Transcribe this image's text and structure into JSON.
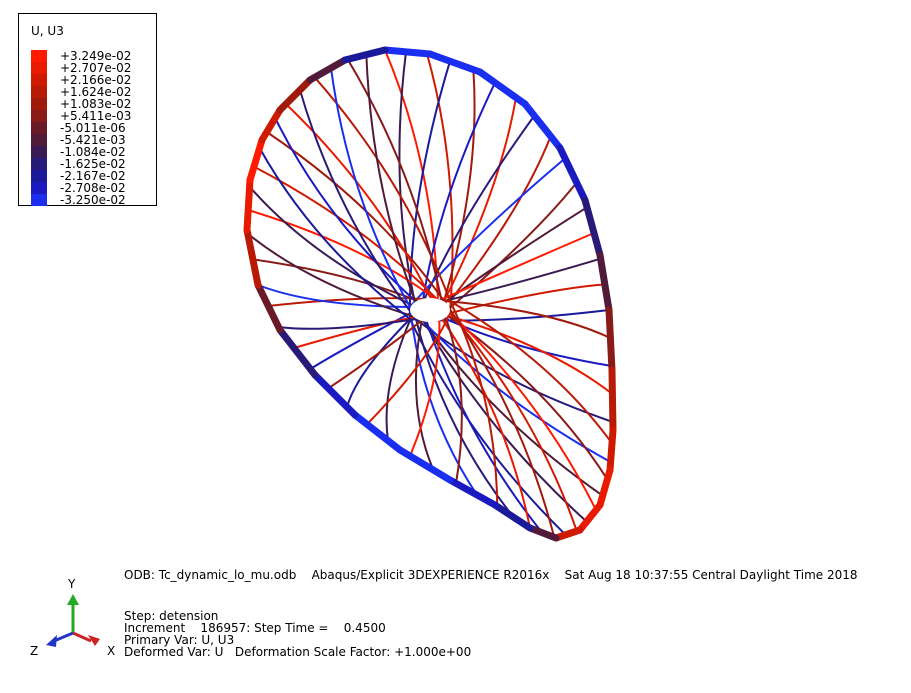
{
  "legend": {
    "title": "U, U3",
    "entries": [
      {
        "label": "+3.249e-02",
        "color": "#ff1a00"
      },
      {
        "label": "+2.707e-02",
        "color": "#e81a00"
      },
      {
        "label": "+2.166e-02",
        "color": "#d01a00"
      },
      {
        "label": "+1.624e-02",
        "color": "#b81a05"
      },
      {
        "label": "+1.083e-02",
        "color": "#a01a0c"
      },
      {
        "label": "+5.411e-03",
        "color": "#881a18"
      },
      {
        "label": "-5.011e-06",
        "color": "#6a1a26"
      },
      {
        "label": "-5.421e-03",
        "color": "#501a38"
      },
      {
        "label": "-1.084e-02",
        "color": "#3a1a55"
      },
      {
        "label": "-1.625e-02",
        "color": "#281a78"
      },
      {
        "label": "-2.167e-02",
        "color": "#1a1a9a"
      },
      {
        "label": "-2.708e-02",
        "color": "#1a1ac0"
      },
      {
        "label": "-3.250e-02",
        "color": "#1a2ef0"
      }
    ]
  },
  "info": {
    "odb_line": "ODB: Tc_dynamic_lo_mu.odb    Abaqus/Explicit 3DEXPERIENCE R2016x    Sat Aug 18 10:37:55 Central Daylight Time 2018",
    "step": "Step: detension",
    "increment": "Increment    186957: Step Time =    0.4500",
    "primary_var": "Primary Var: U, U3",
    "deformed_var": "Deformed Var: U   Deformation Scale Factor: +1.000e+00"
  },
  "triad": {
    "x_label": "X",
    "y_label": "Y",
    "z_label": "Z",
    "x_color": "#cc2222",
    "y_color": "#22aa22",
    "z_color": "#2233cc"
  }
}
